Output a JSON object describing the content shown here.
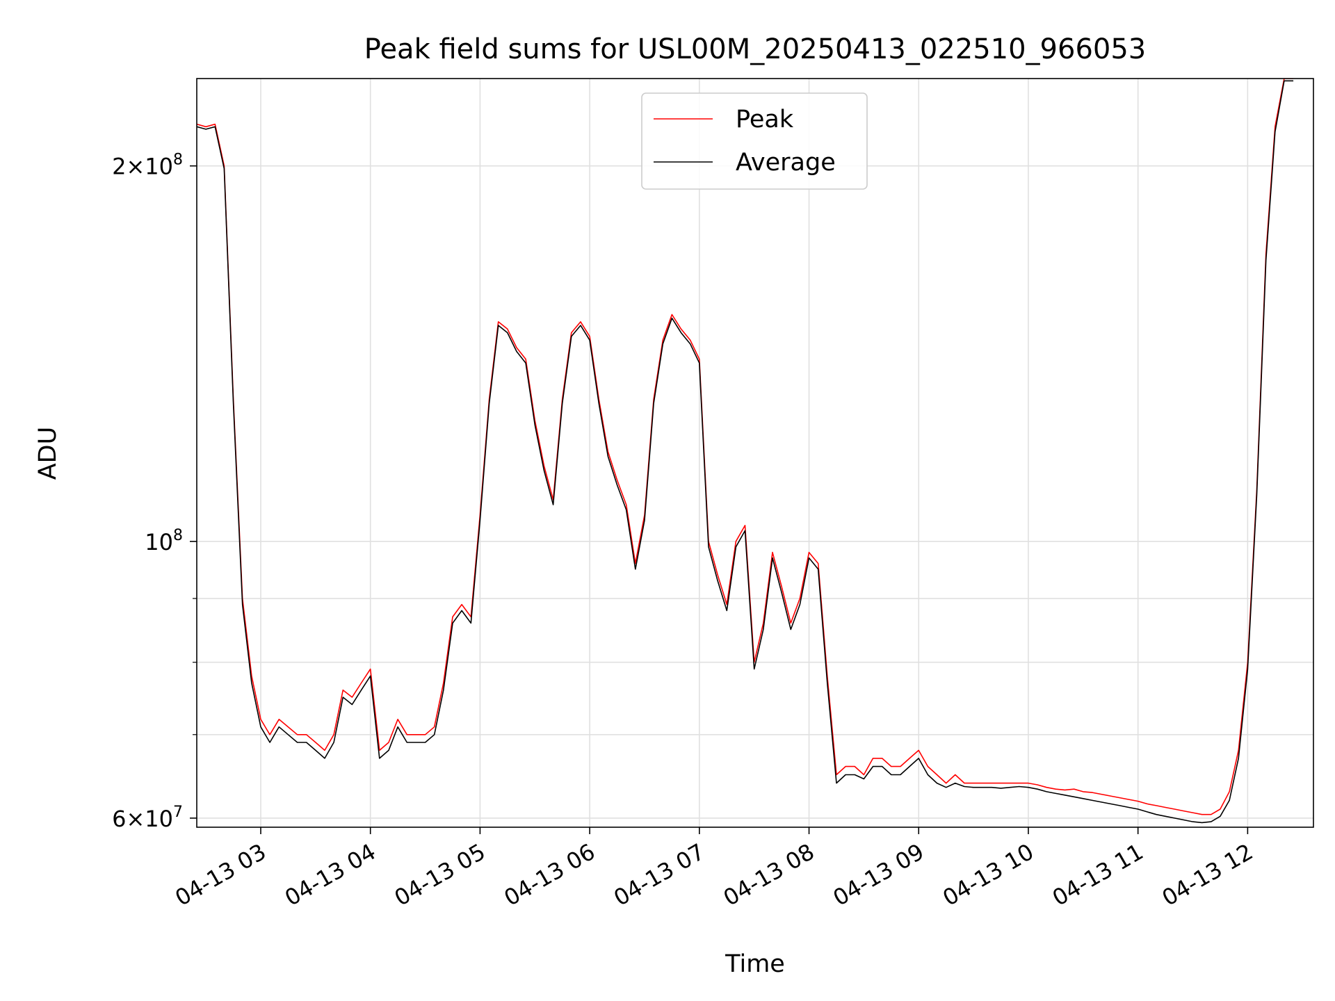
{
  "chart_data": {
    "type": "line",
    "title": "Peak field sums for USL00M_20250413_022510_966053",
    "xlabel": "Time",
    "ylabel": "ADU",
    "y_scale": "log",
    "ylim": [
      59000000,
      235000000
    ],
    "xlim": [
      "2025-04-13 02:25",
      "2025-04-13 12:36"
    ],
    "grid": true,
    "legend_position": "top-center",
    "x_ticks": [
      {
        "t": "2025-04-13 03:00",
        "label": "04-13 03"
      },
      {
        "t": "2025-04-13 04:00",
        "label": "04-13 04"
      },
      {
        "t": "2025-04-13 05:00",
        "label": "04-13 05"
      },
      {
        "t": "2025-04-13 06:00",
        "label": "04-13 06"
      },
      {
        "t": "2025-04-13 07:00",
        "label": "04-13 07"
      },
      {
        "t": "2025-04-13 08:00",
        "label": "04-13 08"
      },
      {
        "t": "2025-04-13 09:00",
        "label": "04-13 09"
      },
      {
        "t": "2025-04-13 10:00",
        "label": "04-13 10"
      },
      {
        "t": "2025-04-13 11:00",
        "label": "04-13 11"
      },
      {
        "t": "2025-04-13 12:00",
        "label": "04-13 12"
      }
    ],
    "y_ticks": [
      {
        "value": 60000000,
        "base": "6",
        "exp": "7"
      },
      {
        "value": 100000000,
        "base": "",
        "exp": "8"
      },
      {
        "value": 200000000,
        "base": "2",
        "exp": "8"
      }
    ],
    "y_minor_ticks": [
      70000000,
      80000000,
      90000000
    ],
    "x_dates": [
      "2025-04-13 02:25",
      "2025-04-13 02:30",
      "2025-04-13 02:35",
      "2025-04-13 02:40",
      "2025-04-13 02:45",
      "2025-04-13 02:50",
      "2025-04-13 02:55",
      "2025-04-13 03:00",
      "2025-04-13 03:05",
      "2025-04-13 03:10",
      "2025-04-13 03:15",
      "2025-04-13 03:20",
      "2025-04-13 03:25",
      "2025-04-13 03:30",
      "2025-04-13 03:35",
      "2025-04-13 03:40",
      "2025-04-13 03:45",
      "2025-04-13 03:50",
      "2025-04-13 03:55",
      "2025-04-13 04:00",
      "2025-04-13 04:05",
      "2025-04-13 04:10",
      "2025-04-13 04:15",
      "2025-04-13 04:20",
      "2025-04-13 04:25",
      "2025-04-13 04:30",
      "2025-04-13 04:35",
      "2025-04-13 04:40",
      "2025-04-13 04:45",
      "2025-04-13 04:50",
      "2025-04-13 04:55",
      "2025-04-13 05:00",
      "2025-04-13 05:05",
      "2025-04-13 05:10",
      "2025-04-13 05:15",
      "2025-04-13 05:20",
      "2025-04-13 05:25",
      "2025-04-13 05:30",
      "2025-04-13 05:35",
      "2025-04-13 05:40",
      "2025-04-13 05:45",
      "2025-04-13 05:50",
      "2025-04-13 05:55",
      "2025-04-13 06:00",
      "2025-04-13 06:05",
      "2025-04-13 06:10",
      "2025-04-13 06:15",
      "2025-04-13 06:20",
      "2025-04-13 06:25",
      "2025-04-13 06:30",
      "2025-04-13 06:35",
      "2025-04-13 06:40",
      "2025-04-13 06:45",
      "2025-04-13 06:50",
      "2025-04-13 06:55",
      "2025-04-13 07:00",
      "2025-04-13 07:05",
      "2025-04-13 07:10",
      "2025-04-13 07:15",
      "2025-04-13 07:20",
      "2025-04-13 07:25",
      "2025-04-13 07:30",
      "2025-04-13 07:35",
      "2025-04-13 07:40",
      "2025-04-13 07:45",
      "2025-04-13 07:50",
      "2025-04-13 07:55",
      "2025-04-13 08:00",
      "2025-04-13 08:05",
      "2025-04-13 08:10",
      "2025-04-13 08:15",
      "2025-04-13 08:20",
      "2025-04-13 08:25",
      "2025-04-13 08:30",
      "2025-04-13 08:35",
      "2025-04-13 08:40",
      "2025-04-13 08:45",
      "2025-04-13 08:50",
      "2025-04-13 08:55",
      "2025-04-13 09:00",
      "2025-04-13 09:05",
      "2025-04-13 09:10",
      "2025-04-13 09:15",
      "2025-04-13 09:20",
      "2025-04-13 09:25",
      "2025-04-13 09:30",
      "2025-04-13 09:35",
      "2025-04-13 09:40",
      "2025-04-13 09:45",
      "2025-04-13 09:50",
      "2025-04-13 09:55",
      "2025-04-13 10:00",
      "2025-04-13 10:05",
      "2025-04-13 10:10",
      "2025-04-13 10:15",
      "2025-04-13 10:20",
      "2025-04-13 10:25",
      "2025-04-13 10:30",
      "2025-04-13 10:35",
      "2025-04-13 10:40",
      "2025-04-13 10:45",
      "2025-04-13 10:50",
      "2025-04-13 10:55",
      "2025-04-13 11:00",
      "2025-04-13 11:05",
      "2025-04-13 11:10",
      "2025-04-13 11:15",
      "2025-04-13 11:20",
      "2025-04-13 11:25",
      "2025-04-13 11:30",
      "2025-04-13 11:35",
      "2025-04-13 11:40",
      "2025-04-13 11:45",
      "2025-04-13 11:50",
      "2025-04-13 11:55",
      "2025-04-13 12:00",
      "2025-04-13 12:05",
      "2025-04-13 12:10",
      "2025-04-13 12:15",
      "2025-04-13 12:20",
      "2025-04-13 12:25",
      "2025-04-13 12:30",
      "2025-04-13 12:35"
    ],
    "series": [
      {
        "name": "Peak",
        "color": "#ff0000",
        "values": [
          216000000,
          215000000,
          216000000,
          200000000,
          130000000,
          90000000,
          78000000,
          72000000,
          70000000,
          72000000,
          71000000,
          70000000,
          70000000,
          69000000,
          68000000,
          70000000,
          76000000,
          75000000,
          77000000,
          79000000,
          68000000,
          69000000,
          72000000,
          70000000,
          70000000,
          70000000,
          71000000,
          77000000,
          87000000,
          89000000,
          87000000,
          105000000,
          130000000,
          150000000,
          148000000,
          143000000,
          140000000,
          125000000,
          115000000,
          108000000,
          130000000,
          147000000,
          150000000,
          146000000,
          130000000,
          118000000,
          112000000,
          107000000,
          96000000,
          105000000,
          130000000,
          145000000,
          152000000,
          148000000,
          145000000,
          140000000,
          100000000,
          94000000,
          89000000,
          100000000,
          103000000,
          80000000,
          86000000,
          98000000,
          92000000,
          86000000,
          90000000,
          98000000,
          96000000,
          78000000,
          65000000,
          66000000,
          66000000,
          65000000,
          67000000,
          67000000,
          66000000,
          66000000,
          67000000,
          68000000,
          66000000,
          65000000,
          64000000,
          65000000,
          64000000,
          64000000,
          64000000,
          64000000,
          64000000,
          64000000,
          64000000,
          64000000,
          63800000,
          63500000,
          63300000,
          63200000,
          63300000,
          63000000,
          62900000,
          62700000,
          62500000,
          62300000,
          62100000,
          61900000,
          61600000,
          61400000,
          61200000,
          61000000,
          60800000,
          60600000,
          60400000,
          60400000,
          61000000,
          63000000,
          68000000,
          80000000,
          110000000,
          170000000,
          215000000,
          235000000,
          235000000
        ]
      },
      {
        "name": "Average",
        "color": "#000000",
        "values": [
          215000000,
          214000000,
          215000000,
          199000000,
          129000000,
          89000000,
          77000000,
          71000000,
          69000000,
          71000000,
          70000000,
          69000000,
          69000000,
          68000000,
          67000000,
          69000000,
          75000000,
          74000000,
          76000000,
          78000000,
          67000000,
          68000000,
          71000000,
          69000000,
          69000000,
          69000000,
          70000000,
          76000000,
          86000000,
          88000000,
          86000000,
          104000000,
          129000000,
          149000000,
          147000000,
          142000000,
          139000000,
          124000000,
          114000000,
          107000000,
          129000000,
          146000000,
          149000000,
          145000000,
          129000000,
          117000000,
          111000000,
          106000000,
          95000000,
          104000000,
          129000000,
          144000000,
          151000000,
          147000000,
          144000000,
          139000000,
          99000000,
          93000000,
          88000000,
          99000000,
          102000000,
          79000000,
          85000000,
          97000000,
          91000000,
          85000000,
          89000000,
          97000000,
          95000000,
          77000000,
          64000000,
          65000000,
          65000000,
          64500000,
          66000000,
          66000000,
          65000000,
          65000000,
          66000000,
          67000000,
          65000000,
          64000000,
          63500000,
          64000000,
          63600000,
          63500000,
          63500000,
          63500000,
          63400000,
          63500000,
          63600000,
          63500000,
          63300000,
          63000000,
          62800000,
          62600000,
          62400000,
          62200000,
          62000000,
          61800000,
          61600000,
          61400000,
          61200000,
          61000000,
          60700000,
          60400000,
          60200000,
          60000000,
          59800000,
          59600000,
          59500000,
          59600000,
          60200000,
          62000000,
          67000000,
          79000000,
          109000000,
          168000000,
          213000000,
          234000000,
          234000000
        ]
      }
    ]
  }
}
